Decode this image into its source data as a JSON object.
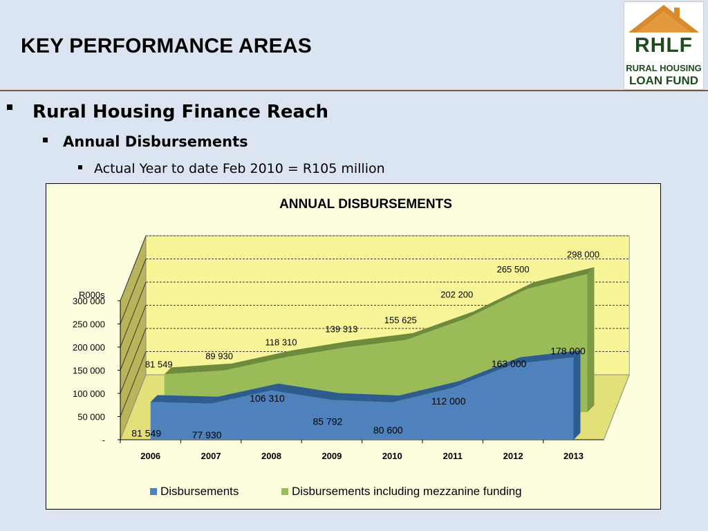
{
  "slide": {
    "title": "KEY PERFORMANCE AREAS",
    "bullet1": "Rural Housing Finance Reach",
    "bullet2": "Annual Disbursements",
    "bullet3": "Actual Year to date Feb 2010 = R105 million"
  },
  "logo": {
    "acronym": "RHLF",
    "line1": "RURAL HOUSING",
    "line2": "LOAN FUND"
  },
  "chart_data": {
    "type": "area",
    "title": "ANNUAL DISBURSEMENTS",
    "ylabel": "R000s",
    "categories": [
      "2006",
      "2007",
      "2008",
      "2009",
      "2010",
      "2011",
      "2012",
      "2013"
    ],
    "series": [
      {
        "name": "Disbursements",
        "color": "#4f81bd",
        "values": [
          81549,
          77930,
          106310,
          85792,
          80600,
          112000,
          163000,
          178000
        ],
        "labels": [
          "81 549",
          "77 930",
          "106 310",
          "85 792",
          "80 600",
          "112 000",
          "163 000",
          "178 000"
        ]
      },
      {
        "name": "Disbursements including mezzanine funding",
        "color": "#9bbb59",
        "values": [
          81549,
          89930,
          118310,
          139313,
          155625,
          202200,
          265500,
          298000
        ],
        "labels": [
          "81 549",
          "89 930",
          "118 310",
          "139 313",
          "155 625",
          "202 200",
          "265 500",
          "298 000"
        ]
      }
    ],
    "ylim": [
      0,
      300000
    ],
    "yticks": [
      0,
      50000,
      100000,
      150000,
      200000,
      250000,
      300000
    ],
    "ytick_labels": [
      "-",
      "50 000",
      "100 000",
      "150 000",
      "200 000",
      "250 000",
      "300 000"
    ],
    "grid": "horizontal dashed",
    "legend": "bottom",
    "view": "3d"
  }
}
